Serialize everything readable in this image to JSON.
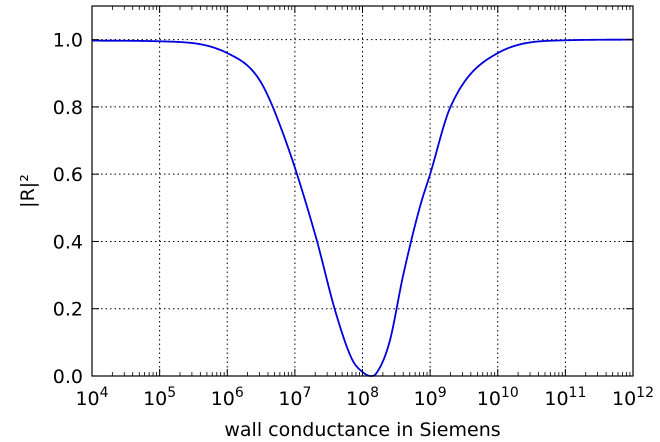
{
  "chart_data": {
    "type": "line",
    "xscale": "log",
    "xlim": [
      10000,
      1000000000000
    ],
    "ylim": [
      0.0,
      1.1
    ],
    "grid": true,
    "grid_style": "dotted",
    "xlabel": "wall conductance in Siemens",
    "ylabel": "|R|²",
    "x_ticks": [
      {
        "value": 10000,
        "base": "10",
        "exp": "4"
      },
      {
        "value": 100000,
        "base": "10",
        "exp": "5"
      },
      {
        "value": 1000000,
        "base": "10",
        "exp": "6"
      },
      {
        "value": 10000000,
        "base": "10",
        "exp": "7"
      },
      {
        "value": 100000000,
        "base": "10",
        "exp": "8"
      },
      {
        "value": 1000000000,
        "base": "10",
        "exp": "9"
      },
      {
        "value": 10000000000,
        "base": "10",
        "exp": "10"
      },
      {
        "value": 100000000000,
        "base": "10",
        "exp": "11"
      },
      {
        "value": 1000000000000,
        "base": "10",
        "exp": "12"
      }
    ],
    "y_ticks": [
      {
        "value": 0.0,
        "label": "0.0"
      },
      {
        "value": 0.2,
        "label": "0.2"
      },
      {
        "value": 0.4,
        "label": "0.4"
      },
      {
        "value": 0.6,
        "label": "0.6"
      },
      {
        "value": 0.8,
        "label": "0.8"
      },
      {
        "value": 1.0,
        "label": "1.0"
      }
    ],
    "series": [
      {
        "color": "#0000dd",
        "x": [
          10000,
          100000,
          1000000,
          3000000,
          7000000,
          20000000,
          40000000,
          70000000,
          100000000,
          133000000,
          160000000,
          250000000,
          400000000,
          700000000,
          1000000000,
          2000000000,
          10000000000,
          100000000000,
          1000000000000
        ],
        "y": [
          0.997,
          0.995,
          0.96,
          0.88,
          0.71,
          0.42,
          0.19,
          0.05,
          0.012,
          0.0,
          0.008,
          0.1,
          0.3,
          0.5,
          0.6,
          0.8,
          0.96,
          0.998,
          1.0
        ]
      }
    ]
  }
}
